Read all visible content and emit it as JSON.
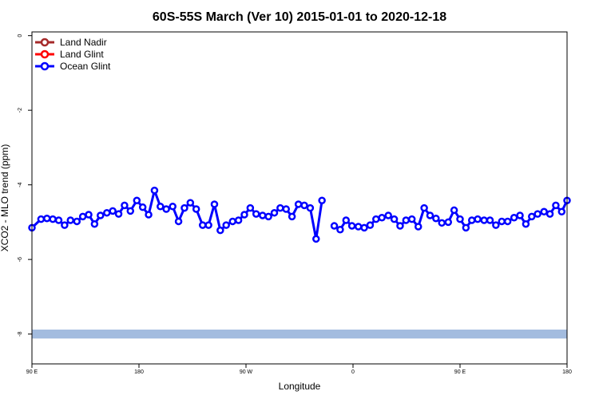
{
  "chart_data": {
    "type": "line",
    "title": "60S-55S March (Ver 10)   2015-01-01 to 2020-12-18",
    "xlabel": "Longitude",
    "ylabel": "XCO2 - MLO trend (ppm)",
    "xlim": [
      0,
      100
    ],
    "ylim": [
      -8.8,
      0.1
    ],
    "x_ticks": [
      {
        "pos": 0,
        "label": "90 E"
      },
      {
        "pos": 20,
        "label": "180"
      },
      {
        "pos": 40,
        "label": "90 W"
      },
      {
        "pos": 60,
        "label": "0"
      },
      {
        "pos": 80,
        "label": "90 E"
      },
      {
        "pos": 100,
        "label": "180"
      }
    ],
    "y_ticks": [
      0,
      -2,
      -4,
      -6,
      -8
    ],
    "legend_position": "top-left",
    "band": {
      "y_min": -8.12,
      "y_max": -7.88,
      "color": "#a3bcdf"
    },
    "series": [
      {
        "name": "Land Nadir",
        "color": "#a52a2a",
        "points": []
      },
      {
        "name": "Land Glint",
        "color": "#ff0000",
        "points": []
      },
      {
        "name": "Ocean Glint",
        "color": "#0000ff",
        "points": [
          [
            0.0,
            -5.15
          ],
          [
            1.7,
            -4.92
          ],
          [
            2.8,
            -4.9
          ],
          [
            3.9,
            -4.92
          ],
          [
            5.0,
            -4.95
          ],
          [
            6.1,
            -5.08
          ],
          [
            7.2,
            -4.95
          ],
          [
            8.4,
            -4.98
          ],
          [
            9.5,
            -4.85
          ],
          [
            10.6,
            -4.8
          ],
          [
            11.7,
            -5.05
          ],
          [
            12.8,
            -4.82
          ],
          [
            14.0,
            -4.75
          ],
          [
            15.1,
            -4.7
          ],
          [
            16.2,
            -4.78
          ],
          [
            17.3,
            -4.55
          ],
          [
            18.4,
            -4.7
          ],
          [
            19.6,
            -4.42
          ],
          [
            20.7,
            -4.6
          ],
          [
            21.8,
            -4.8
          ],
          [
            22.9,
            -4.15
          ],
          [
            24.0,
            -4.58
          ],
          [
            25.1,
            -4.65
          ],
          [
            26.3,
            -4.58
          ],
          [
            27.4,
            -4.98
          ],
          [
            28.5,
            -4.62
          ],
          [
            29.6,
            -4.48
          ],
          [
            30.7,
            -4.65
          ],
          [
            31.9,
            -5.08
          ],
          [
            33.0,
            -5.08
          ],
          [
            34.1,
            -4.52
          ],
          [
            35.2,
            -5.22
          ],
          [
            36.3,
            -5.08
          ],
          [
            37.5,
            -4.98
          ],
          [
            38.6,
            -4.95
          ],
          [
            39.7,
            -4.8
          ],
          [
            40.8,
            -4.62
          ],
          [
            41.9,
            -4.78
          ],
          [
            43.1,
            -4.82
          ],
          [
            44.2,
            -4.85
          ],
          [
            45.3,
            -4.75
          ],
          [
            46.4,
            -4.62
          ],
          [
            47.5,
            -4.65
          ],
          [
            48.6,
            -4.85
          ],
          [
            49.8,
            -4.52
          ],
          [
            50.9,
            -4.55
          ],
          [
            52.0,
            -4.62
          ],
          [
            53.1,
            -5.45
          ],
          [
            54.2,
            -4.42
          ],
          null,
          [
            56.5,
            -5.1
          ],
          [
            57.6,
            -5.2
          ],
          [
            58.7,
            -4.95
          ],
          [
            59.8,
            -5.1
          ],
          [
            61.0,
            -5.12
          ],
          [
            62.1,
            -5.15
          ],
          [
            63.2,
            -5.08
          ],
          [
            64.3,
            -4.92
          ],
          [
            65.4,
            -4.88
          ],
          [
            66.6,
            -4.82
          ],
          [
            67.7,
            -4.92
          ],
          [
            68.8,
            -5.1
          ],
          [
            69.9,
            -4.95
          ],
          [
            71.0,
            -4.92
          ],
          [
            72.2,
            -5.12
          ],
          [
            73.3,
            -4.62
          ],
          [
            74.4,
            -4.82
          ],
          [
            75.5,
            -4.9
          ],
          [
            76.6,
            -5.02
          ],
          [
            77.8,
            -5.0
          ],
          [
            78.9,
            -4.68
          ],
          [
            80.0,
            -4.92
          ],
          [
            81.1,
            -5.15
          ],
          [
            82.2,
            -4.95
          ],
          [
            83.3,
            -4.92
          ],
          [
            84.5,
            -4.95
          ],
          [
            85.6,
            -4.95
          ],
          [
            86.7,
            -5.08
          ],
          [
            87.8,
            -4.98
          ],
          [
            88.9,
            -4.98
          ],
          [
            90.1,
            -4.88
          ],
          [
            91.2,
            -4.82
          ],
          [
            92.3,
            -5.05
          ],
          [
            93.4,
            -4.85
          ],
          [
            94.5,
            -4.78
          ],
          [
            95.7,
            -4.72
          ],
          [
            96.8,
            -4.78
          ],
          [
            97.9,
            -4.55
          ],
          [
            99.0,
            -4.72
          ],
          [
            100.0,
            -4.42
          ]
        ]
      }
    ]
  }
}
